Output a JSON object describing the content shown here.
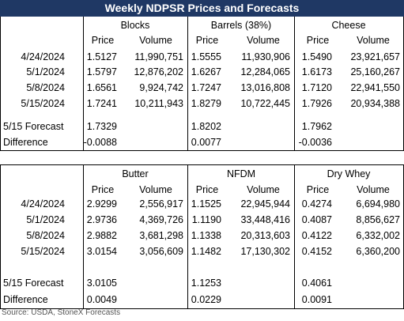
{
  "header": {
    "title": "Weekly NDPSR Prices and Forecasts"
  },
  "tables": [
    {
      "groups": [
        "Blocks",
        "Barrels (38%)",
        "Cheese"
      ],
      "subheaders": [
        "Price",
        "Volume",
        "Price",
        "Volume",
        "Price",
        "Volume"
      ],
      "rows": [
        {
          "label": "4/24/2024",
          "cells": [
            "1.5127",
            "11,990,751",
            "1.5555",
            "11,930,906",
            "1.5490",
            "23,921,657"
          ]
        },
        {
          "label": "5/1/2024",
          "cells": [
            "1.5797",
            "12,876,202",
            "1.6267",
            "12,284,065",
            "1.6173",
            "25,160,267"
          ]
        },
        {
          "label": "5/8/2024",
          "cells": [
            "1.6561",
            "9,924,742",
            "1.7247",
            "13,016,808",
            "1.7120",
            "22,941,550"
          ]
        },
        {
          "label": "5/15/2024",
          "cells": [
            "1.7241",
            "10,211,943",
            "1.8279",
            "10,722,445",
            "1.7926",
            "20,934,388"
          ]
        }
      ],
      "forecast": {
        "label": "5/15 Forecast",
        "cells": [
          "1.7329",
          "1.8202",
          "1.7962"
        ]
      },
      "difference": {
        "label": "Difference",
        "cells": [
          "-0.0088",
          "0.0077",
          "-0.0036"
        ]
      }
    },
    {
      "groups": [
        "Butter",
        "NFDM",
        "Dry Whey"
      ],
      "subheaders": [
        "Price",
        "Volume",
        "Price",
        "Volume",
        "Price",
        "Volume"
      ],
      "rows": [
        {
          "label": "4/24/2024",
          "cells": [
            "2.9299",
            "2,556,917",
            "1.1525",
            "22,945,944",
            "0.4274",
            "6,694,980"
          ]
        },
        {
          "label": "5/1/2024",
          "cells": [
            "2.9736",
            "4,369,726",
            "1.1190",
            "33,448,416",
            "0.4087",
            "8,856,627"
          ]
        },
        {
          "label": "5/8/2024",
          "cells": [
            "2.9882",
            "3,681,298",
            "1.1338",
            "20,313,603",
            "0.4122",
            "6,332,002"
          ]
        },
        {
          "label": "5/15/2024",
          "cells": [
            "3.0154",
            "3,056,609",
            "1.1482",
            "17,130,302",
            "0.4152",
            "6,360,200"
          ]
        }
      ],
      "forecast": {
        "label": "5/15 Forecast",
        "cells": [
          "3.0105",
          "1.1253",
          "0.4061"
        ]
      },
      "difference": {
        "label": "Difference",
        "cells": [
          "0.0049",
          "0.0229",
          "0.0091"
        ]
      }
    }
  ],
  "source": "Source: USDA, StoneX Forecasts"
}
